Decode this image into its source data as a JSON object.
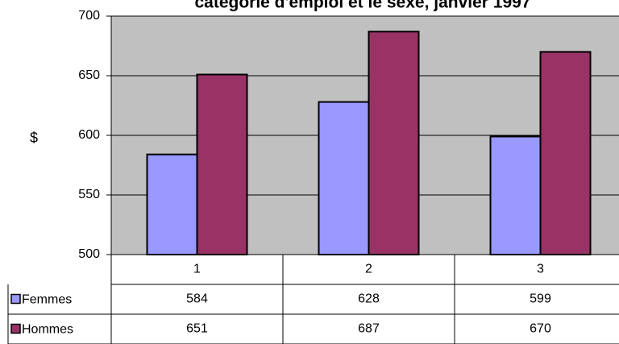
{
  "chart_data": {
    "type": "bar",
    "title": "catégorie d'emploi et le sexe, janvier 1997",
    "y_label": "$",
    "categories": [
      "1",
      "2",
      "3"
    ],
    "series": [
      {
        "name": "Femmes",
        "color": "#9999ff",
        "values": [
          584,
          628,
          599
        ]
      },
      {
        "name": "Hommes",
        "color": "#993366",
        "values": [
          651,
          687,
          670
        ]
      }
    ],
    "ylim": [
      500,
      700
    ],
    "yticks": [
      500,
      550,
      600,
      650,
      700
    ],
    "grid": true,
    "plot_background": "#c0c0c0"
  }
}
